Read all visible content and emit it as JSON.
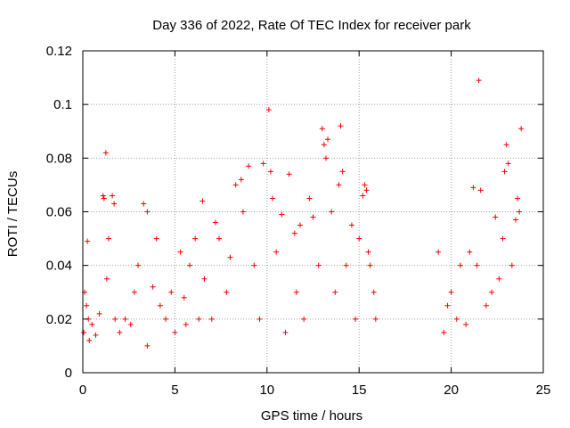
{
  "chart_data": {
    "type": "scatter",
    "title": "Day 336 of 2022, Rate Of TEC Index for receiver park",
    "xlabel": "GPS time / hours",
    "ylabel": "ROTI / TECUs",
    "xlim": [
      0,
      25
    ],
    "ylim": [
      0,
      0.12
    ],
    "x_ticks": [
      "0",
      "5",
      "10",
      "15",
      "20",
      "25"
    ],
    "y_ticks": [
      "0",
      "0.02",
      "0.04",
      "0.06",
      "0.08",
      "0.1",
      "0.12"
    ],
    "grid": true,
    "marker": "+",
    "color": "#ff0000",
    "series": [
      {
        "x": [
          0.05,
          0.1,
          0.2,
          0.25,
          0.3,
          0.35,
          0.5,
          0.7,
          0.9,
          1.1,
          1.15,
          1.25,
          1.3,
          1.4,
          1.6,
          1.7,
          1.75,
          2.0,
          2.3,
          2.6,
          2.8,
          3.0,
          3.3,
          3.5,
          3.5,
          3.8,
          4.0,
          4.2,
          4.5,
          4.8,
          5.0,
          5.3,
          5.5,
          5.6,
          5.8,
          6.1,
          6.3,
          6.5,
          6.6,
          7.0,
          7.2,
          7.4,
          7.8,
          8.0,
          8.3,
          8.6,
          8.7,
          9.0,
          9.3,
          9.6,
          9.8,
          10.1,
          10.2,
          10.3,
          10.5,
          10.8,
          11.0,
          11.2,
          11.5,
          11.6,
          11.8,
          12.0,
          12.3,
          12.5,
          12.8,
          13.0,
          13.1,
          13.2,
          13.3,
          13.5,
          13.7,
          13.9,
          14.0,
          14.1,
          14.3,
          14.6,
          14.8,
          15.0,
          15.2,
          15.3,
          15.4,
          15.5,
          15.6,
          15.8,
          15.9,
          19.3,
          19.6,
          19.8,
          20.0,
          20.3,
          20.5,
          20.8,
          21.0,
          21.2,
          21.4,
          21.5,
          21.6,
          21.9,
          22.2,
          22.4,
          22.6,
          22.8,
          22.9,
          23.0,
          23.1,
          23.3,
          23.5,
          23.6,
          23.7,
          23.8
        ],
        "y": [
          0.015,
          0.03,
          0.025,
          0.049,
          0.02,
          0.012,
          0.018,
          0.014,
          0.022,
          0.066,
          0.065,
          0.082,
          0.035,
          0.05,
          0.066,
          0.063,
          0.02,
          0.015,
          0.02,
          0.018,
          0.03,
          0.04,
          0.063,
          0.06,
          0.01,
          0.032,
          0.05,
          0.025,
          0.02,
          0.03,
          0.015,
          0.045,
          0.028,
          0.018,
          0.04,
          0.05,
          0.02,
          0.064,
          0.035,
          0.02,
          0.056,
          0.05,
          0.03,
          0.043,
          0.07,
          0.072,
          0.06,
          0.077,
          0.04,
          0.02,
          0.078,
          0.098,
          0.075,
          0.065,
          0.045,
          0.059,
          0.015,
          0.074,
          0.052,
          0.03,
          0.055,
          0.02,
          0.065,
          0.058,
          0.04,
          0.091,
          0.085,
          0.08,
          0.087,
          0.06,
          0.03,
          0.07,
          0.092,
          0.075,
          0.04,
          0.055,
          0.02,
          0.05,
          0.066,
          0.07,
          0.068,
          0.045,
          0.04,
          0.03,
          0.02,
          0.045,
          0.015,
          0.025,
          0.03,
          0.02,
          0.04,
          0.018,
          0.045,
          0.069,
          0.04,
          0.109,
          0.068,
          0.025,
          0.03,
          0.058,
          0.035,
          0.05,
          0.075,
          0.085,
          0.078,
          0.04,
          0.057,
          0.065,
          0.06,
          0.091
        ]
      }
    ]
  }
}
